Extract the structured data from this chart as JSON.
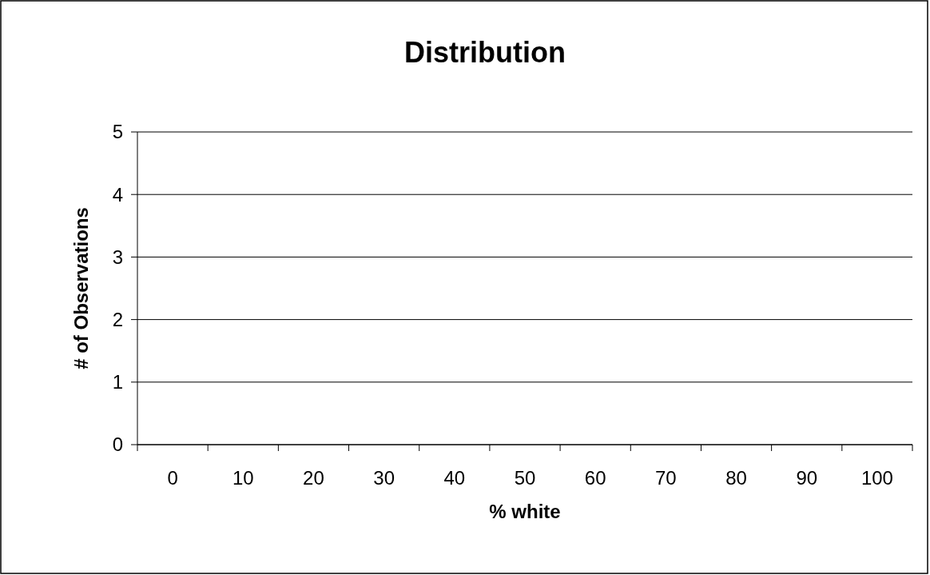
{
  "chart_data": {
    "type": "bar",
    "title": "Distribution",
    "xlabel": "% white",
    "ylabel": "# of Observations",
    "categories": [
      "0",
      "10",
      "20",
      "30",
      "40",
      "50",
      "60",
      "70",
      "80",
      "90",
      "100"
    ],
    "values": [
      0,
      0,
      0,
      0,
      0,
      0,
      0,
      0,
      0,
      0,
      0
    ],
    "ylim": [
      0,
      5
    ],
    "yticks": [
      0,
      1,
      2,
      3,
      4,
      5
    ],
    "grid": "y"
  }
}
